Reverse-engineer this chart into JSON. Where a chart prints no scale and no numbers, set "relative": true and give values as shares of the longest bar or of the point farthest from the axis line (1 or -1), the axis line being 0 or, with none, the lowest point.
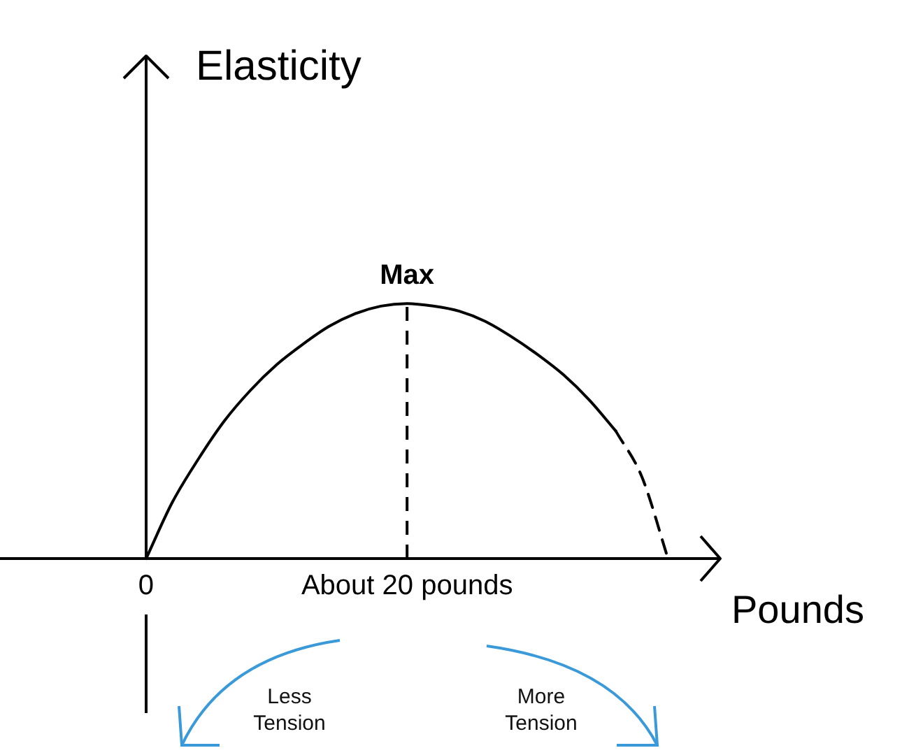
{
  "chart_data": {
    "type": "line",
    "relative": true,
    "xlabel": "Pounds",
    "categories": [
      "0",
      null,
      null,
      null,
      null,
      null,
      null,
      null,
      null,
      null,
      "About 20 pounds",
      null,
      null,
      null,
      null,
      null,
      null,
      null,
      null,
      null,
      null
    ],
    "marker": "none",
    "grid": false,
    "legend": false,
    "series": [
      {
        "color": "#000000",
        "line_style": "solid",
        "values": [
          0,
          0.22,
          0.39,
          0.54,
          0.66,
          0.76,
          0.84,
          0.91,
          0.96,
          0.99,
          1,
          0.99,
          0.97,
          0.93,
          0.87,
          0.8,
          0.72,
          0.62,
          0.5,
          null,
          null
        ]
      },
      {
        "color": "#000000",
        "line_style": "dashed",
        "values": [
          null,
          null,
          null,
          null,
          null,
          null,
          null,
          null,
          null,
          null,
          null,
          null,
          null,
          null,
          null,
          null,
          null,
          null,
          0.5,
          0.32,
          0
        ]
      }
    ],
    "ref_lines": [
      {
        "axis": "x",
        "value": "About 20 pounds",
        "line_style": "dashed",
        "color": "#000000"
      }
    ],
    "annotations": [
      {
        "text": "Max",
        "x": "About 20 pounds",
        "y": 1
      },
      "Elasticity",
      "Less Tension",
      "More Tension"
    ]
  }
}
